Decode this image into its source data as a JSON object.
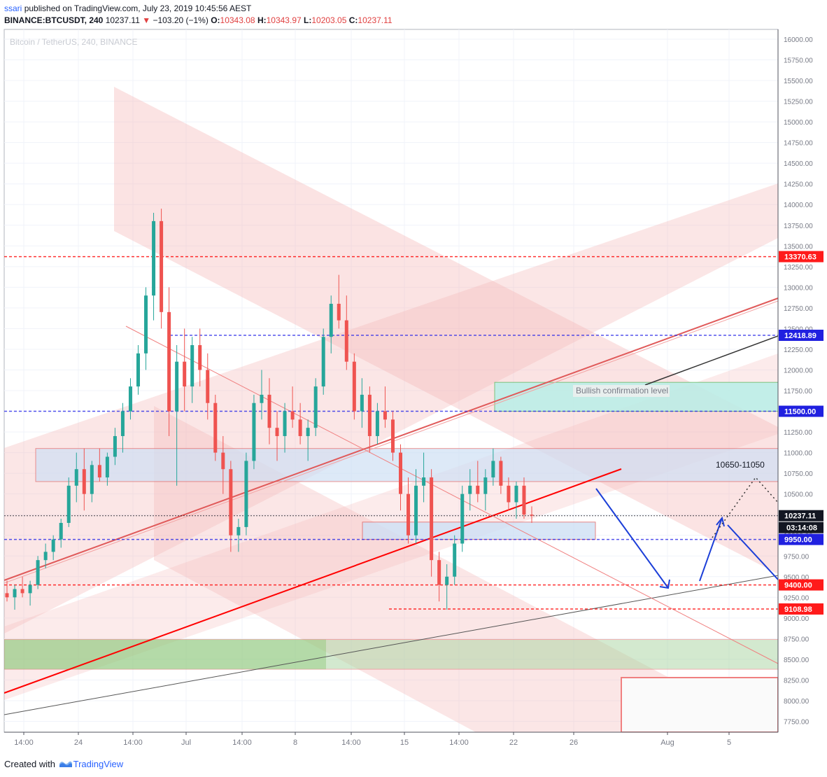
{
  "header": {
    "publisher": "ssari",
    "published_text": "published on TradingView.com, July 23, 2019 10:45:56 AEST",
    "symbol": "BINANCE:BTCUSDT, 240",
    "last_price": "10237.11",
    "change": "−103.20 (−1%)",
    "open_label": "O:",
    "open": "10343.08",
    "high_label": "H:",
    "high": "10343.97",
    "low_label": "L:",
    "low": "10203.05",
    "close_label": "C:",
    "close": "10237.11"
  },
  "watermark": "Bitcoin / TetherUS, 240, BINANCE",
  "footer": {
    "prefix": "Created with",
    "brand": "TradingView"
  },
  "colors": {
    "up": "#26a69a",
    "down": "#ef5350",
    "red_level": "#ff0000",
    "blue_level": "#0000ff",
    "channel": "#f4b6b6",
    "blue_zone": "#cfe0f5",
    "green_zone": "#a8d5a0",
    "cyan_zone": "#b9efe8"
  },
  "chart_data": {
    "type": "candlestick",
    "interval": "240",
    "y_axis": {
      "range": [
        7600,
        16100
      ],
      "ticks": [
        7750,
        8000,
        8250,
        8500,
        8750,
        9000,
        9250,
        9500,
        9750,
        10000,
        10250,
        10500,
        10750,
        11000,
        11250,
        11500,
        11750,
        12000,
        12250,
        12500,
        12750,
        13000,
        13250,
        13500,
        13750,
        14000,
        14250,
        14500,
        14750,
        15000,
        15250,
        15500,
        15750,
        16000
      ],
      "position": "right"
    },
    "x_axis": {
      "ticks": [
        "14:00",
        "24",
        "14:00",
        "Jul",
        "14:00",
        "8",
        "14:00",
        "15",
        "14:00",
        "22",
        "26",
        "Aug",
        "5"
      ]
    },
    "price_labels": [
      {
        "value": 13370.63,
        "label": "13370.63",
        "color": "red"
      },
      {
        "value": 12418.89,
        "label": "12418.89",
        "color": "blue"
      },
      {
        "value": 11500.0,
        "label": "11500.00",
        "color": "blue"
      },
      {
        "value": 10237.11,
        "label": "10237.11",
        "color": "black"
      },
      {
        "value": 9950.0,
        "label": "9950.00",
        "color": "blue"
      },
      {
        "value": 9400.0,
        "label": "9400.00",
        "color": "red"
      },
      {
        "value": 9108.98,
        "label": "9108.98",
        "color": "red"
      }
    ],
    "countdown": "03:14:08",
    "annotations": [
      {
        "text": "Bullish confirmation level"
      },
      {
        "text": "10650-11050"
      }
    ],
    "zones": [
      {
        "name": "resistance-zone",
        "range": [
          10650,
          11050
        ]
      },
      {
        "name": "bullish-confirmation-zone",
        "range": [
          11500,
          11850
        ]
      },
      {
        "name": "support-zone",
        "range": [
          9950,
          10160
        ]
      },
      {
        "name": "green-demand-zone",
        "range": [
          8380,
          8740
        ]
      }
    ],
    "ohlc_approx": [
      [
        9300,
        9450,
        9200,
        9250
      ],
      [
        9250,
        9400,
        9100,
        9350
      ],
      [
        9350,
        9500,
        9250,
        9300
      ],
      [
        9300,
        9450,
        9150,
        9400
      ],
      [
        9400,
        9750,
        9350,
        9700
      ],
      [
        9700,
        9900,
        9600,
        9800
      ],
      [
        9800,
        10000,
        9700,
        9950
      ],
      [
        9950,
        10200,
        9850,
        10150
      ],
      [
        10150,
        10700,
        10100,
        10600
      ],
      [
        10600,
        11000,
        10400,
        10800
      ],
      [
        10800,
        11050,
        10300,
        10500
      ],
      [
        10500,
        10900,
        10400,
        10850
      ],
      [
        10850,
        11050,
        10650,
        10700
      ],
      [
        10700,
        11000,
        10600,
        10950
      ],
      [
        10950,
        11300,
        10850,
        11200
      ],
      [
        11200,
        11600,
        11000,
        11500
      ],
      [
        11500,
        11900,
        11400,
        11800
      ],
      [
        11800,
        12300,
        11700,
        12200
      ],
      [
        12200,
        13000,
        12000,
        12900
      ],
      [
        12900,
        13900,
        12600,
        13800
      ],
      [
        13800,
        13950,
        12500,
        12700
      ],
      [
        12700,
        13000,
        11200,
        11500
      ],
      [
        11500,
        12300,
        10600,
        12100
      ],
      [
        12100,
        12500,
        11500,
        11800
      ],
      [
        11800,
        12400,
        11600,
        12300
      ],
      [
        12300,
        12500,
        11800,
        12000
      ],
      [
        12000,
        12200,
        11400,
        11600
      ],
      [
        11600,
        11700,
        10900,
        11000
      ],
      [
        11000,
        11200,
        10500,
        10800
      ],
      [
        10800,
        10900,
        9800,
        10000
      ],
      [
        10000,
        10200,
        9800,
        10100
      ],
      [
        10100,
        11000,
        10000,
        10900
      ],
      [
        10900,
        11700,
        10800,
        11600
      ],
      [
        11600,
        12000,
        11400,
        11700
      ],
      [
        11700,
        11900,
        11100,
        11300
      ],
      [
        11300,
        11500,
        10900,
        11200
      ],
      [
        11200,
        11600,
        11000,
        11500
      ],
      [
        11500,
        11800,
        11300,
        11400
      ],
      [
        11400,
        11600,
        11100,
        11200
      ],
      [
        11200,
        11400,
        10900,
        11300
      ],
      [
        11300,
        11900,
        11200,
        11800
      ],
      [
        11800,
        12500,
        11700,
        12400
      ],
      [
        12400,
        12900,
        12200,
        12800
      ],
      [
        12800,
        13150,
        12500,
        12600
      ],
      [
        12600,
        12900,
        12000,
        12100
      ],
      [
        12100,
        12200,
        11400,
        11500
      ],
      [
        11500,
        11900,
        11300,
        11700
      ],
      [
        11700,
        11800,
        11000,
        11200
      ],
      [
        11200,
        11600,
        11100,
        11500
      ],
      [
        11500,
        11800,
        11300,
        11400
      ],
      [
        11400,
        11500,
        10900,
        11000
      ],
      [
        11000,
        11100,
        10300,
        10500
      ],
      [
        10500,
        10700,
        9900,
        10000
      ],
      [
        10000,
        10800,
        9900,
        10600
      ],
      [
        10600,
        11000,
        10400,
        10700
      ],
      [
        10700,
        10800,
        9500,
        9700
      ],
      [
        9700,
        9800,
        9200,
        9400
      ],
      [
        9400,
        9650,
        9100,
        9500
      ],
      [
        9500,
        10000,
        9400,
        9900
      ],
      [
        9900,
        10600,
        9800,
        10500
      ],
      [
        10500,
        10800,
        10300,
        10600
      ],
      [
        10600,
        10900,
        10400,
        10500
      ],
      [
        10500,
        10800,
        10300,
        10700
      ],
      [
        10700,
        11050,
        10600,
        10900
      ],
      [
        10900,
        10950,
        10500,
        10600
      ],
      [
        10600,
        10700,
        10300,
        10400
      ],
      [
        10400,
        10650,
        10200,
        10600
      ],
      [
        10600,
        10700,
        10200,
        10250
      ],
      [
        10250,
        10350,
        10150,
        10237
      ]
    ]
  }
}
